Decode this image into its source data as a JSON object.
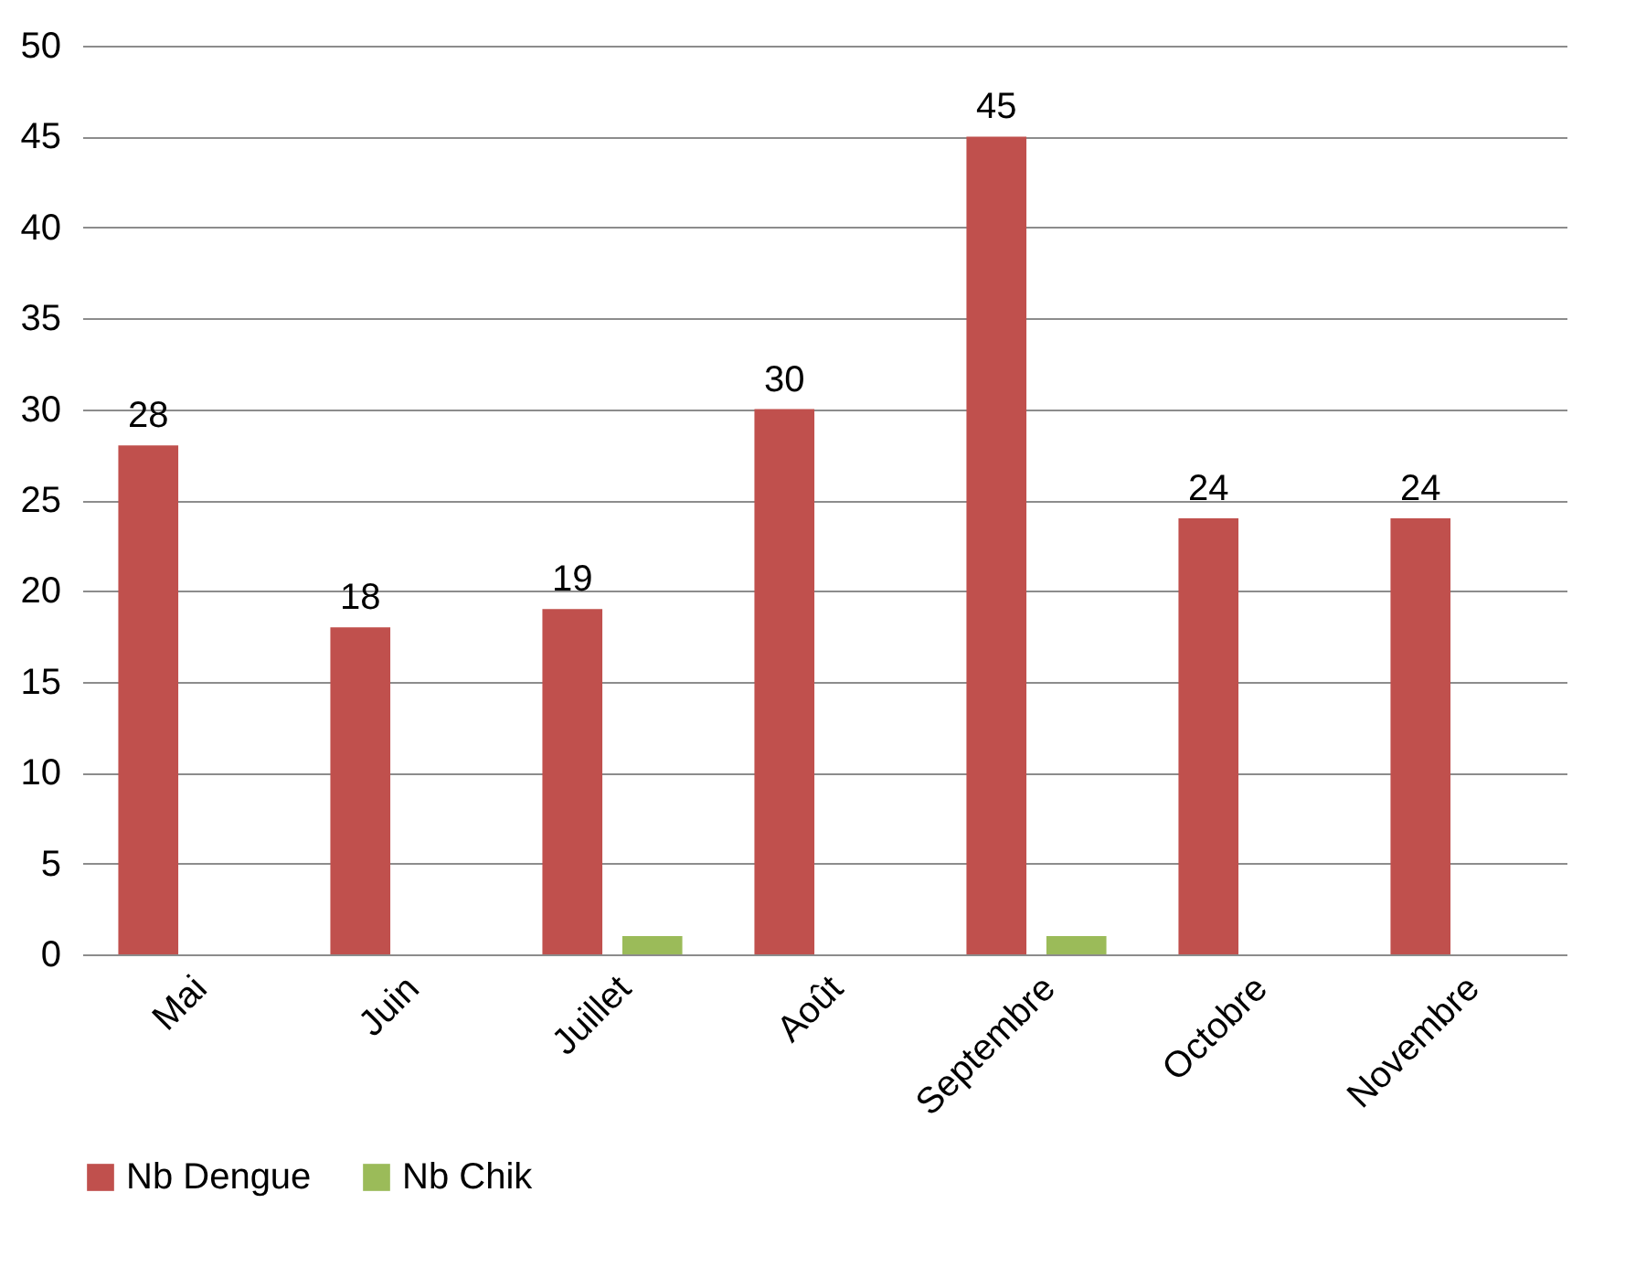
{
  "chart_data": {
    "type": "bar",
    "categories": [
      "Mai",
      "Juin",
      "Juillet",
      "Août",
      "Septembre",
      "Octobre",
      "Novembre"
    ],
    "series": [
      {
        "name": "Nb Dengue",
        "color": "#c0504d",
        "values": [
          28,
          18,
          19,
          30,
          45,
          24,
          24
        ],
        "value_labels": [
          "28",
          "18",
          "19",
          "30",
          "45",
          "24",
          "24"
        ]
      },
      {
        "name": "Nb Chik",
        "color": "#9bbb59",
        "values": [
          0,
          0,
          1,
          0,
          1,
          0,
          0
        ]
      }
    ],
    "ylim": [
      0,
      50
    ],
    "yticks": [
      0,
      5,
      10,
      15,
      20,
      25,
      30,
      35,
      40,
      45,
      50
    ],
    "grid": "y",
    "legend": "bottom"
  }
}
